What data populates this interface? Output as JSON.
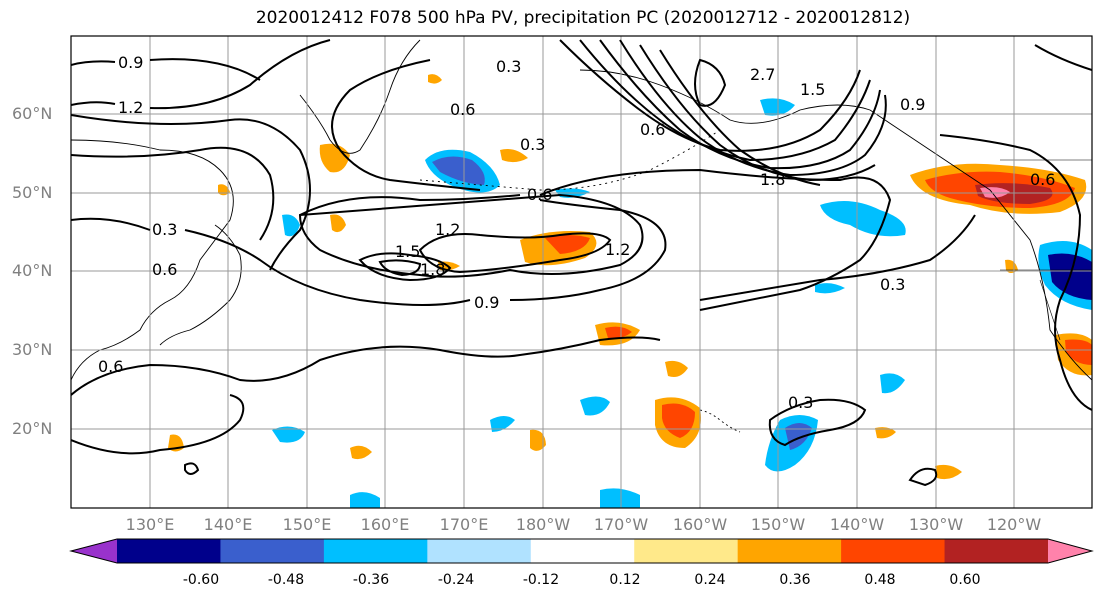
{
  "title": "2020012412 F078 500 hPa PV, precipitation PC (2020012712 - 2020012812)",
  "lat_labels": [
    "60°N",
    "50°N",
    "40°N",
    "30°N",
    "20°N"
  ],
  "lon_labels": [
    "130°E",
    "140°E",
    "150°E",
    "160°E",
    "170°E",
    "180°W",
    "170°W",
    "160°W",
    "150°W",
    "140°W",
    "130°W",
    "120°W"
  ],
  "contour_labels": [
    "0.9",
    "1.2",
    "0.3",
    "0.6",
    "0.3",
    "0.6",
    "0.3",
    "0.6",
    "1.2",
    "1.5",
    "1.8",
    "0.9",
    "1.2",
    "0.6",
    "2.7",
    "1.5",
    "1.8",
    "0.9",
    "0.6",
    "0.3",
    "0.3",
    "0.6"
  ],
  "colorbar": {
    "tick_labels": [
      "-0.60",
      "-0.48",
      "-0.36",
      "-0.24",
      "-0.12",
      "0.12",
      "0.24",
      "0.36",
      "0.48",
      "0.60"
    ],
    "colors": [
      "#9932cc",
      "#00008b",
      "#3a5fcd",
      "#00bfff",
      "#b0e2ff",
      "#ffffff",
      "#ffe98a",
      "#ffa500",
      "#ff4500",
      "#b22222",
      "#ff82ab"
    ]
  }
}
